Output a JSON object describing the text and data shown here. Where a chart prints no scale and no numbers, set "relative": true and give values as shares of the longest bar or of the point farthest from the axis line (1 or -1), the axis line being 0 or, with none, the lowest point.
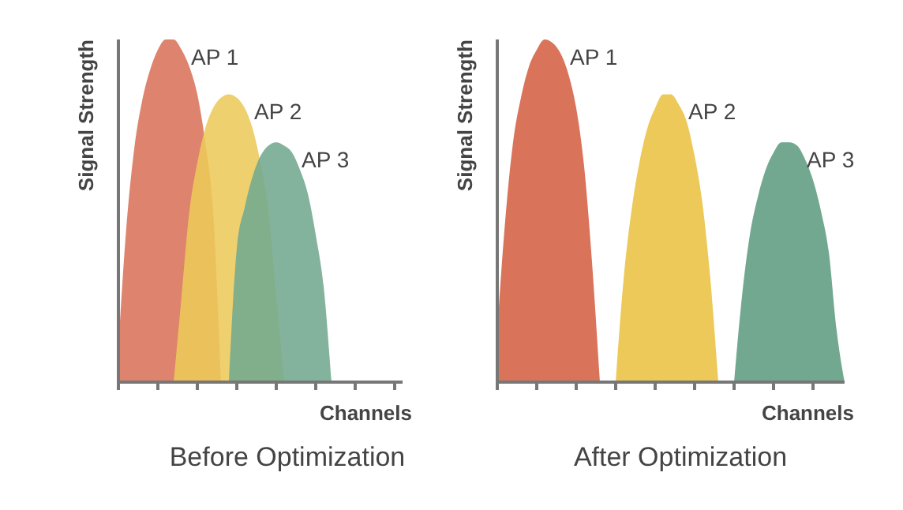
{
  "chart_data": [
    {
      "type": "area",
      "title": "Before Optimization",
      "xlabel": "Channels",
      "ylabel": "Signal Strength",
      "relative": true,
      "legend": false,
      "grid": false,
      "categories": [
        null,
        null,
        null,
        null,
        null,
        null,
        null,
        null,
        null,
        null,
        null,
        null,
        null,
        null,
        null,
        null,
        null,
        null,
        null,
        null,
        null,
        null,
        null,
        null,
        null,
        null,
        null,
        null,
        null,
        null,
        null,
        null,
        null,
        null,
        null,
        null,
        null
      ],
      "series": [
        {
          "name": "AP 1",
          "color": "#d9735a",
          "values": [
            0.1,
            0.45,
            0.68,
            0.82,
            0.91,
            0.97,
            1,
            1,
            0.97,
            0.92,
            0.84,
            0.7,
            0.5,
            0,
            null,
            null,
            null,
            null,
            null,
            null,
            null,
            null,
            null,
            null,
            null,
            null,
            null,
            null,
            null,
            null,
            null,
            null,
            null,
            null,
            null,
            null,
            null
          ]
        },
        {
          "name": "AP 2",
          "color": "#edc95a",
          "values": [
            null,
            null,
            null,
            null,
            null,
            null,
            null,
            0,
            0.25,
            0.5,
            0.64,
            0.74,
            0.8,
            0.83,
            0.84,
            0.83,
            0.8,
            0.74,
            0.64,
            0.5,
            0.25,
            0,
            null,
            null,
            null,
            null,
            null,
            null,
            null,
            null,
            null,
            null,
            null,
            null,
            null,
            null,
            null
          ]
        },
        {
          "name": "AP 3",
          "color": "#72a890",
          "values": [
            null,
            null,
            null,
            null,
            null,
            null,
            null,
            null,
            null,
            null,
            null,
            null,
            null,
            null,
            0,
            0.39,
            0.51,
            0.6,
            0.66,
            0.69,
            0.7,
            0.69,
            0.67,
            0.62,
            0.55,
            0.43,
            0.28,
            0,
            null,
            null,
            null,
            null,
            null,
            null,
            null,
            null,
            null
          ]
        }
      ]
    },
    {
      "type": "area",
      "title": "After Optimization",
      "xlabel": "Channels",
      "ylabel": "Signal Strength",
      "relative": true,
      "legend": false,
      "grid": false,
      "categories": [
        null,
        null,
        null,
        null,
        null,
        null,
        null,
        null,
        null,
        null,
        null,
        null,
        null,
        null,
        null,
        null,
        null,
        null,
        null,
        null,
        null,
        null,
        null,
        null,
        null,
        null,
        null,
        null,
        null,
        null,
        null,
        null,
        null,
        null,
        null,
        null,
        null,
        null,
        null,
        null,
        null,
        null,
        null,
        null,
        null
      ],
      "series": [
        {
          "name": "AP 1",
          "color": "#d9735a",
          "values": [
            0.15,
            0.47,
            0.7,
            0.83,
            0.92,
            0.97,
            1,
            0.99,
            0.96,
            0.9,
            0.8,
            0.63,
            0.35,
            0,
            null,
            null,
            null,
            null,
            null,
            null,
            null,
            null,
            null,
            null,
            null,
            null,
            null,
            null,
            null,
            null,
            null,
            null,
            null,
            null,
            null,
            null,
            null,
            null,
            null,
            null,
            null,
            null,
            null,
            null,
            null
          ]
        },
        {
          "name": "AP 2",
          "color": "#edc95a",
          "values": [
            null,
            null,
            null,
            null,
            null,
            null,
            null,
            null,
            null,
            null,
            null,
            null,
            null,
            null,
            null,
            0,
            0.3,
            0.5,
            0.64,
            0.74,
            0.8,
            0.84,
            0.84,
            0.81,
            0.76,
            0.66,
            0.52,
            0.3,
            0,
            null,
            null,
            null,
            null,
            null,
            null,
            null,
            null,
            null,
            null,
            null,
            null,
            null,
            null,
            null,
            null
          ]
        },
        {
          "name": "AP 3",
          "color": "#72a890",
          "values": [
            null,
            null,
            null,
            null,
            null,
            null,
            null,
            null,
            null,
            null,
            null,
            null,
            null,
            null,
            null,
            null,
            null,
            null,
            null,
            null,
            null,
            null,
            null,
            null,
            null,
            null,
            null,
            null,
            null,
            null,
            0,
            0.25,
            0.43,
            0.54,
            0.62,
            0.67,
            0.7,
            0.7,
            0.69,
            0.65,
            0.59,
            0.5,
            0.38,
            0.15,
            0
          ]
        }
      ]
    }
  ]
}
